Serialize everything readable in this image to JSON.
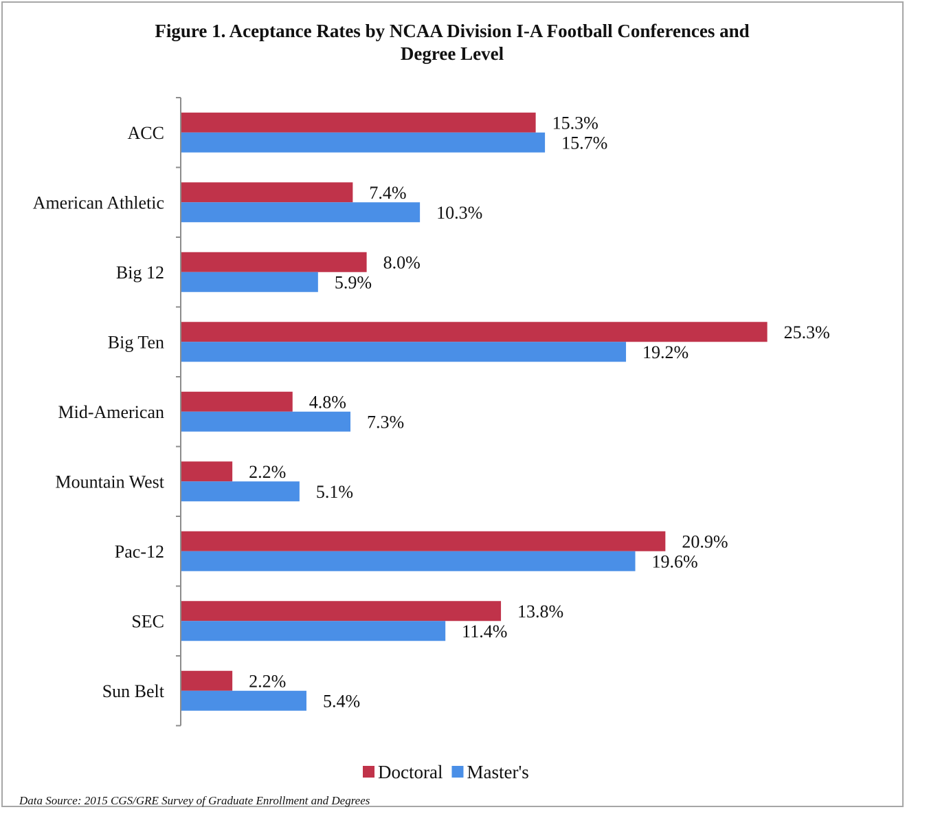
{
  "chart_data": {
    "type": "bar",
    "orientation": "horizontal",
    "title_line1": "Figure 1. Aceptance Rates by NCAA Division I-A Football Conferences and",
    "title_line2": "Degree Level",
    "categories": [
      "ACC",
      "American Athletic",
      "Big 12",
      "Big Ten",
      "Mid-American",
      "Mountain West",
      "Pac-12",
      "SEC",
      "Sun Belt"
    ],
    "series": [
      {
        "name": "Doctoral",
        "color": "#c0334a",
        "values": [
          15.3,
          7.4,
          8.0,
          25.3,
          4.8,
          2.2,
          20.9,
          13.8,
          2.2
        ],
        "labels": [
          "15.3%",
          "7.4%",
          "8.0%",
          "25.3%",
          "4.8%",
          "2.2%",
          "20.9%",
          "13.8%",
          "2.2%"
        ]
      },
      {
        "name": "Master's",
        "color": "#4a8fe7",
        "values": [
          15.7,
          10.3,
          5.9,
          19.2,
          7.3,
          5.1,
          19.6,
          11.4,
          5.4
        ],
        "labels": [
          "15.7%",
          "10.3%",
          "5.9%",
          "19.2%",
          "7.3%",
          "5.1%",
          "19.6%",
          "11.4%",
          "5.4%"
        ]
      }
    ],
    "xlim": [
      0,
      30
    ],
    "grid": false,
    "legend_position": "bottom"
  },
  "source": "Data Source: 2015 CGS/GRE  Survey of Graduate Enrollment and Degrees"
}
